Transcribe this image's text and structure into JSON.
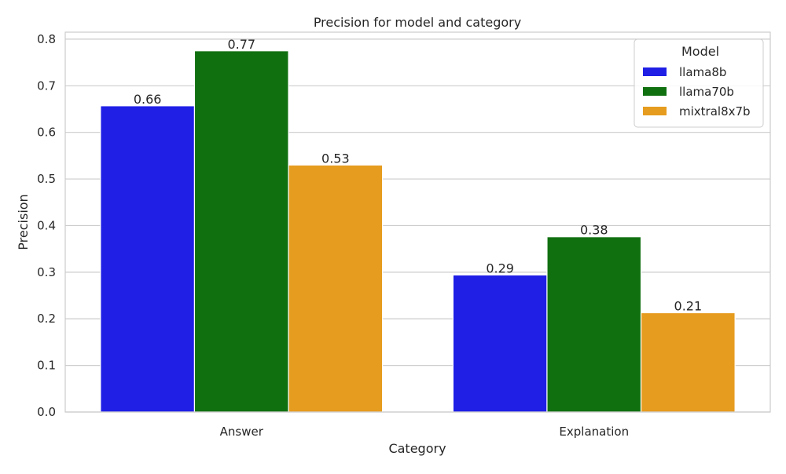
{
  "chart_data": {
    "type": "bar",
    "title": "Precision for model and category",
    "xlabel": "Category",
    "ylabel": "Precision",
    "categories": [
      "Answer",
      "Explanation"
    ],
    "series": [
      {
        "name": "llama8b",
        "color": "#1f1fe6",
        "values": [
          0.657,
          0.294
        ],
        "labels": [
          "0.66",
          "0.29"
        ]
      },
      {
        "name": "llama70b",
        "color": "#107010",
        "values": [
          0.775,
          0.376
        ],
        "labels": [
          "0.77",
          "0.38"
        ]
      },
      {
        "name": "mixtral8x7b",
        "color": "#e69c1f",
        "values": [
          0.53,
          0.213
        ],
        "labels": [
          "0.53",
          "0.21"
        ]
      }
    ],
    "ylim": [
      0,
      0.815
    ],
    "yticks": [
      "0.0",
      "0.1",
      "0.2",
      "0.3",
      "0.4",
      "0.5",
      "0.6",
      "0.7",
      "0.8"
    ],
    "grid": true,
    "legend": {
      "title": "Model",
      "position": "top-right"
    }
  }
}
